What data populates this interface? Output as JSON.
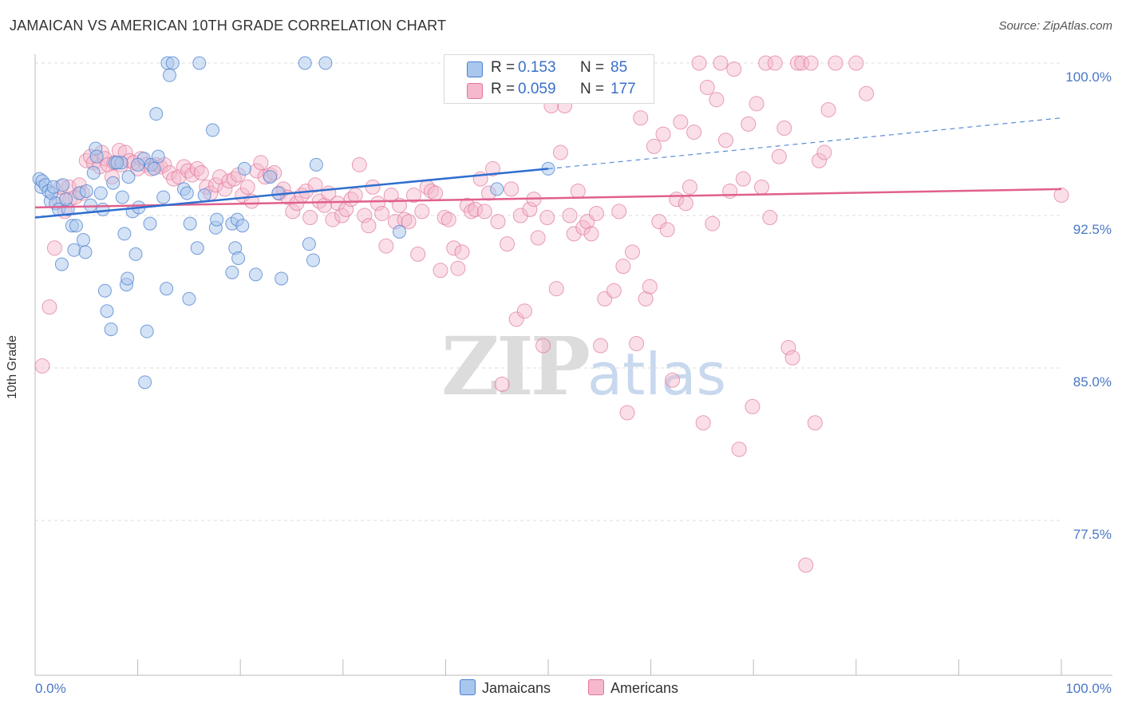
{
  "title": "JAMAICAN VS AMERICAN 10TH GRADE CORRELATION CHART",
  "source": "Source: ZipAtlas.com",
  "y_axis_label": "10th Grade",
  "watermark": {
    "part1": "ZIP",
    "part2": "atlas"
  },
  "y_ticks": [
    "100.0%",
    "92.5%",
    "85.0%",
    "77.5%"
  ],
  "x_ticks": {
    "left": "0.0%",
    "right": "100.0%"
  },
  "stats": {
    "row1": {
      "r_label": "R =",
      "r_value": "0.153",
      "n_label": "N =",
      "n_value": "85"
    },
    "row2": {
      "r_label": "R =",
      "r_value": "0.059",
      "n_label": "N =",
      "n_value": "177"
    }
  },
  "legend": {
    "jamaicans": "Jamaicans",
    "americans": "Americans"
  },
  "colors": {
    "jamaicans_fill": "#a9c6ec",
    "jamaicans_stroke": "#4a80d0",
    "jamaicans_line": "#2f6ecf",
    "americans_fill": "#f5b8cc",
    "americans_stroke": "#e07799",
    "americans_line": "#e0608e",
    "tick_label": "#4a77c4",
    "grid": "#dddddd"
  },
  "chart_data": {
    "type": "scatter",
    "title": "JAMAICAN VS AMERICAN 10TH GRADE CORRELATION CHART",
    "xlabel": "",
    "ylabel": "10th Grade",
    "xlim": [
      0,
      100
    ],
    "ylim": [
      70.2,
      101.3
    ],
    "y_ticks": [
      77.5,
      85.0,
      92.5,
      100.0
    ],
    "grid": true,
    "legend_position": "bottom-center",
    "series": [
      {
        "name": "Jamaicans",
        "r": 0.153,
        "n": 85,
        "trend": {
          "x0": 0,
          "y0": 92.4,
          "x1": 50,
          "y1": 94.8,
          "dash_to_x": 100,
          "dash_to_y": 97.3
        },
        "points": [
          [
            0.4,
            94.3
          ],
          [
            0.6,
            93.9
          ],
          [
            0.7,
            94.2
          ],
          [
            1.0,
            94.0
          ],
          [
            1.3,
            93.7
          ],
          [
            1.5,
            93.2
          ],
          [
            1.6,
            93.6
          ],
          [
            1.8,
            93.9
          ],
          [
            2.0,
            93.1
          ],
          [
            2.3,
            92.8
          ],
          [
            2.6,
            90.1
          ],
          [
            2.7,
            94.0
          ],
          [
            3.2,
            92.8
          ],
          [
            3.6,
            92.0
          ],
          [
            3.8,
            90.8
          ],
          [
            4.0,
            92.0
          ],
          [
            4.3,
            93.6
          ],
          [
            4.7,
            91.3
          ],
          [
            4.9,
            90.7
          ],
          [
            5.0,
            93.7
          ],
          [
            5.4,
            93.0
          ],
          [
            5.7,
            94.6
          ],
          [
            5.9,
            95.8
          ],
          [
            6.4,
            93.6
          ],
          [
            6.6,
            92.8
          ],
          [
            6.8,
            88.8
          ],
          [
            7.0,
            87.8
          ],
          [
            7.4,
            86.9
          ],
          [
            7.6,
            94.1
          ],
          [
            7.8,
            95.1
          ],
          [
            8.4,
            95.1
          ],
          [
            8.5,
            93.4
          ],
          [
            8.7,
            91.6
          ],
          [
            8.9,
            89.1
          ],
          [
            9.0,
            89.4
          ],
          [
            9.1,
            94.4
          ],
          [
            9.5,
            92.7
          ],
          [
            9.8,
            90.6
          ],
          [
            10.1,
            92.9
          ],
          [
            10.6,
            95.3
          ],
          [
            10.7,
            84.3
          ],
          [
            10.9,
            86.8
          ],
          [
            11.2,
            92.1
          ],
          [
            11.3,
            95.0
          ],
          [
            11.6,
            94.8
          ],
          [
            11.8,
            97.5
          ],
          [
            12.0,
            95.4
          ],
          [
            12.5,
            93.4
          ],
          [
            12.8,
            88.9
          ],
          [
            12.9,
            100.0
          ],
          [
            13.1,
            99.4
          ],
          [
            13.4,
            100.0
          ],
          [
            14.5,
            93.8
          ],
          [
            14.8,
            93.6
          ],
          [
            15.0,
            88.4
          ],
          [
            15.1,
            92.1
          ],
          [
            15.8,
            90.9
          ],
          [
            16.0,
            100.0
          ],
          [
            16.5,
            93.5
          ],
          [
            17.3,
            96.7
          ],
          [
            17.6,
            91.9
          ],
          [
            17.7,
            92.3
          ],
          [
            19.2,
            92.1
          ],
          [
            19.2,
            89.7
          ],
          [
            19.5,
            90.9
          ],
          [
            19.7,
            92.3
          ],
          [
            19.8,
            90.4
          ],
          [
            20.2,
            92.0
          ],
          [
            20.4,
            94.8
          ],
          [
            21.5,
            89.6
          ],
          [
            22.9,
            94.4
          ],
          [
            23.7,
            93.6
          ],
          [
            24.0,
            89.4
          ],
          [
            26.3,
            100.0
          ],
          [
            26.7,
            91.1
          ],
          [
            27.1,
            90.3
          ],
          [
            27.4,
            95.0
          ],
          [
            28.3,
            100.0
          ],
          [
            45.0,
            93.8
          ],
          [
            50.0,
            94.8
          ],
          [
            35.5,
            91.7
          ],
          [
            8.0,
            95.1
          ],
          [
            10.0,
            95.0
          ],
          [
            6.0,
            95.4
          ],
          [
            3.0,
            93.3
          ]
        ]
      },
      {
        "name": "Americans",
        "r": 0.059,
        "n": 177,
        "trend": {
          "x0": 0,
          "y0": 92.9,
          "x1": 100,
          "y1": 93.8
        },
        "points": [
          [
            0.7,
            85.1
          ],
          [
            1.4,
            88.0
          ],
          [
            1.9,
            90.9
          ],
          [
            2.3,
            93.3
          ],
          [
            2.5,
            93.9
          ],
          [
            2.9,
            92.7
          ],
          [
            3.3,
            93.9
          ],
          [
            3.4,
            93.3
          ],
          [
            3.9,
            93.4
          ],
          [
            4.3,
            94.0
          ],
          [
            4.6,
            93.6
          ],
          [
            5.0,
            95.2
          ],
          [
            5.4,
            95.4
          ],
          [
            5.7,
            95.1
          ],
          [
            6.3,
            94.9
          ],
          [
            6.5,
            95.6
          ],
          [
            6.8,
            95.3
          ],
          [
            7.1,
            95.0
          ],
          [
            7.5,
            94.4
          ],
          [
            7.7,
            95.1
          ],
          [
            8.2,
            95.7
          ],
          [
            8.4,
            95.0
          ],
          [
            8.8,
            95.6
          ],
          [
            9.2,
            95.2
          ],
          [
            9.6,
            95.1
          ],
          [
            10.0,
            94.8
          ],
          [
            10.3,
            95.3
          ],
          [
            10.8,
            95.0
          ],
          [
            11.3,
            94.8
          ],
          [
            11.8,
            95.0
          ],
          [
            12.2,
            94.9
          ],
          [
            12.6,
            95.0
          ],
          [
            13.1,
            94.6
          ],
          [
            13.5,
            94.3
          ],
          [
            14.0,
            94.4
          ],
          [
            14.5,
            94.9
          ],
          [
            14.9,
            94.7
          ],
          [
            15.3,
            94.5
          ],
          [
            15.8,
            94.8
          ],
          [
            16.2,
            94.6
          ],
          [
            16.7,
            93.9
          ],
          [
            17.1,
            93.6
          ],
          [
            17.6,
            94.0
          ],
          [
            18.0,
            94.4
          ],
          [
            18.5,
            93.8
          ],
          [
            18.9,
            94.2
          ],
          [
            19.4,
            94.3
          ],
          [
            19.8,
            94.5
          ],
          [
            20.2,
            93.5
          ],
          [
            20.7,
            93.9
          ],
          [
            21.1,
            93.2
          ],
          [
            21.6,
            94.7
          ],
          [
            22.0,
            95.1
          ],
          [
            22.4,
            94.4
          ],
          [
            22.9,
            94.5
          ],
          [
            23.3,
            94.6
          ],
          [
            23.8,
            93.6
          ],
          [
            24.2,
            93.8
          ],
          [
            24.6,
            93.4
          ],
          [
            25.1,
            92.7
          ],
          [
            25.5,
            93.1
          ],
          [
            26.0,
            93.5
          ],
          [
            26.4,
            93.7
          ],
          [
            26.8,
            92.4
          ],
          [
            27.3,
            94.0
          ],
          [
            27.7,
            93.2
          ],
          [
            28.2,
            93.0
          ],
          [
            28.6,
            93.6
          ],
          [
            29.0,
            92.3
          ],
          [
            29.5,
            93.1
          ],
          [
            29.9,
            92.5
          ],
          [
            30.3,
            92.8
          ],
          [
            30.8,
            93.3
          ],
          [
            31.2,
            93.5
          ],
          [
            31.6,
            95.0
          ],
          [
            32.1,
            92.5
          ],
          [
            32.5,
            92.0
          ],
          [
            32.9,
            93.9
          ],
          [
            33.4,
            93.1
          ],
          [
            33.8,
            92.6
          ],
          [
            34.2,
            91.0
          ],
          [
            34.7,
            93.5
          ],
          [
            35.1,
            92.2
          ],
          [
            35.5,
            93.0
          ],
          [
            36.0,
            92.3
          ],
          [
            36.4,
            92.2
          ],
          [
            36.9,
            93.5
          ],
          [
            37.3,
            90.6
          ],
          [
            37.7,
            92.7
          ],
          [
            38.2,
            93.9
          ],
          [
            38.6,
            93.7
          ],
          [
            39.0,
            93.6
          ],
          [
            39.5,
            89.8
          ],
          [
            39.9,
            92.4
          ],
          [
            40.3,
            92.3
          ],
          [
            40.8,
            90.9
          ],
          [
            41.2,
            89.9
          ],
          [
            41.6,
            90.7
          ],
          [
            42.1,
            93.0
          ],
          [
            42.5,
            92.7
          ],
          [
            42.9,
            92.8
          ],
          [
            43.4,
            94.3
          ],
          [
            43.8,
            92.7
          ],
          [
            44.2,
            93.6
          ],
          [
            44.6,
            94.8
          ],
          [
            45.1,
            92.2
          ],
          [
            45.5,
            84.2
          ],
          [
            46.0,
            91.1
          ],
          [
            46.4,
            93.8
          ],
          [
            46.9,
            87.4
          ],
          [
            47.3,
            92.5
          ],
          [
            47.7,
            87.8
          ],
          [
            48.2,
            92.8
          ],
          [
            48.6,
            93.3
          ],
          [
            49.0,
            91.4
          ],
          [
            49.5,
            86.1
          ],
          [
            49.9,
            92.4
          ],
          [
            50.3,
            97.9
          ],
          [
            50.8,
            88.9
          ],
          [
            51.2,
            95.6
          ],
          [
            51.6,
            97.9
          ],
          [
            52.1,
            92.5
          ],
          [
            52.5,
            91.6
          ],
          [
            52.9,
            93.7
          ],
          [
            53.4,
            91.9
          ],
          [
            53.8,
            92.2
          ],
          [
            54.2,
            91.6
          ],
          [
            54.7,
            92.6
          ],
          [
            55.1,
            86.1
          ],
          [
            55.5,
            88.4
          ],
          [
            56.0,
            100.0
          ],
          [
            56.4,
            88.8
          ],
          [
            56.9,
            92.7
          ],
          [
            57.3,
            90.0
          ],
          [
            57.7,
            82.8
          ],
          [
            58.2,
            90.7
          ],
          [
            58.6,
            86.2
          ],
          [
            59.0,
            97.3
          ],
          [
            59.5,
            88.4
          ],
          [
            59.9,
            89.0
          ],
          [
            60.3,
            95.9
          ],
          [
            60.8,
            92.2
          ],
          [
            61.2,
            96.5
          ],
          [
            61.6,
            91.8
          ],
          [
            62.1,
            84.4
          ],
          [
            62.5,
            93.3
          ],
          [
            62.9,
            97.1
          ],
          [
            63.4,
            93.1
          ],
          [
            63.8,
            93.9
          ],
          [
            64.2,
            96.6
          ],
          [
            64.7,
            100.0
          ],
          [
            65.1,
            82.3
          ],
          [
            65.5,
            98.8
          ],
          [
            66.0,
            92.1
          ],
          [
            66.4,
            98.2
          ],
          [
            66.8,
            100.0
          ],
          [
            67.3,
            96.2
          ],
          [
            67.7,
            93.7
          ],
          [
            68.1,
            99.7
          ],
          [
            68.6,
            81.0
          ],
          [
            69.0,
            94.3
          ],
          [
            69.5,
            97.0
          ],
          [
            69.9,
            83.1
          ],
          [
            70.3,
            98.0
          ],
          [
            70.8,
            93.9
          ],
          [
            71.2,
            100.0
          ],
          [
            71.6,
            92.4
          ],
          [
            72.1,
            100.0
          ],
          [
            72.5,
            95.4
          ],
          [
            73.0,
            96.8
          ],
          [
            73.4,
            86.0
          ],
          [
            73.8,
            85.5
          ],
          [
            74.3,
            100.0
          ],
          [
            74.7,
            100.0
          ],
          [
            75.1,
            75.3
          ],
          [
            75.6,
            100.0
          ],
          [
            76.0,
            82.3
          ],
          [
            76.4,
            95.2
          ],
          [
            76.9,
            95.6
          ],
          [
            77.3,
            97.7
          ],
          [
            78.0,
            100.0
          ],
          [
            80.0,
            100.0
          ],
          [
            81.0,
            98.5
          ],
          [
            100.0,
            93.5
          ]
        ]
      }
    ]
  }
}
